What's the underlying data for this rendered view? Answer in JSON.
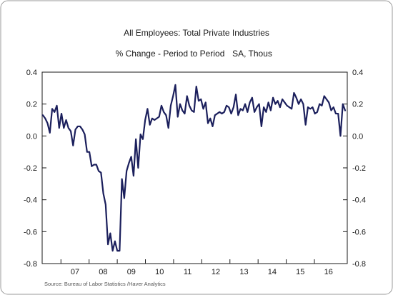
{
  "chart_data": {
    "type": "line",
    "title": "All Employees: Total Private Industries",
    "subtitle": "% Change - Period to Period",
    "unit_note": "SA, Thous",
    "source": "Source:  Bureau of Labor Statistics /Haver Analytics",
    "ylim": [
      -0.8,
      0.4
    ],
    "y_ticks": [
      "0.4",
      "0.2",
      "0.0",
      "-0.2",
      "-0.4",
      "-0.6",
      "-0.8"
    ],
    "x_ticks": [
      "07",
      "08",
      "09",
      "10",
      "11",
      "12",
      "13",
      "14",
      "15",
      "16"
    ],
    "grid": false,
    "line_color": "#1b1f5c",
    "series": [
      {
        "values": [
          0.13,
          0.11,
          0.08,
          0.02,
          0.17,
          0.15,
          0.19,
          0.05,
          0.14,
          0.05,
          0.1,
          0.05,
          0.03,
          -0.06,
          0.04,
          0.06,
          0.06,
          0.04,
          0.01,
          -0.1,
          -0.1,
          -0.19,
          -0.18,
          -0.18,
          -0.22,
          -0.23,
          -0.36,
          -0.43,
          -0.68,
          -0.61,
          -0.72,
          -0.66,
          -0.72,
          -0.72,
          -0.27,
          -0.39,
          -0.22,
          -0.17,
          -0.13,
          -0.25,
          -0.02,
          -0.2,
          0.01,
          -0.02,
          0.1,
          0.17,
          0.07,
          0.11,
          0.1,
          0.11,
          0.12,
          0.19,
          0.15,
          0.13,
          0.05,
          0.19,
          0.25,
          0.32,
          0.12,
          0.2,
          0.16,
          0.14,
          0.25,
          0.19,
          0.16,
          0.15,
          0.31,
          0.22,
          0.23,
          0.17,
          0.21,
          0.08,
          0.11,
          0.06,
          0.13,
          0.14,
          0.15,
          0.14,
          0.15,
          0.19,
          0.18,
          0.14,
          0.18,
          0.26,
          0.13,
          0.17,
          0.16,
          0.2,
          0.15,
          0.21,
          0.24,
          0.15,
          0.18,
          0.2,
          0.06,
          0.18,
          0.15,
          0.21,
          0.16,
          0.24,
          0.2,
          0.22,
          0.18,
          0.23,
          0.21,
          0.19,
          0.18,
          0.17,
          0.27,
          0.24,
          0.2,
          0.23,
          0.2,
          0.07,
          0.18,
          0.17,
          0.18,
          0.14,
          0.15,
          0.2,
          0.19,
          0.25,
          0.23,
          0.21,
          0.16,
          0.18,
          0.14,
          0.14,
          0.0,
          0.2,
          0.16
        ]
      }
    ]
  }
}
